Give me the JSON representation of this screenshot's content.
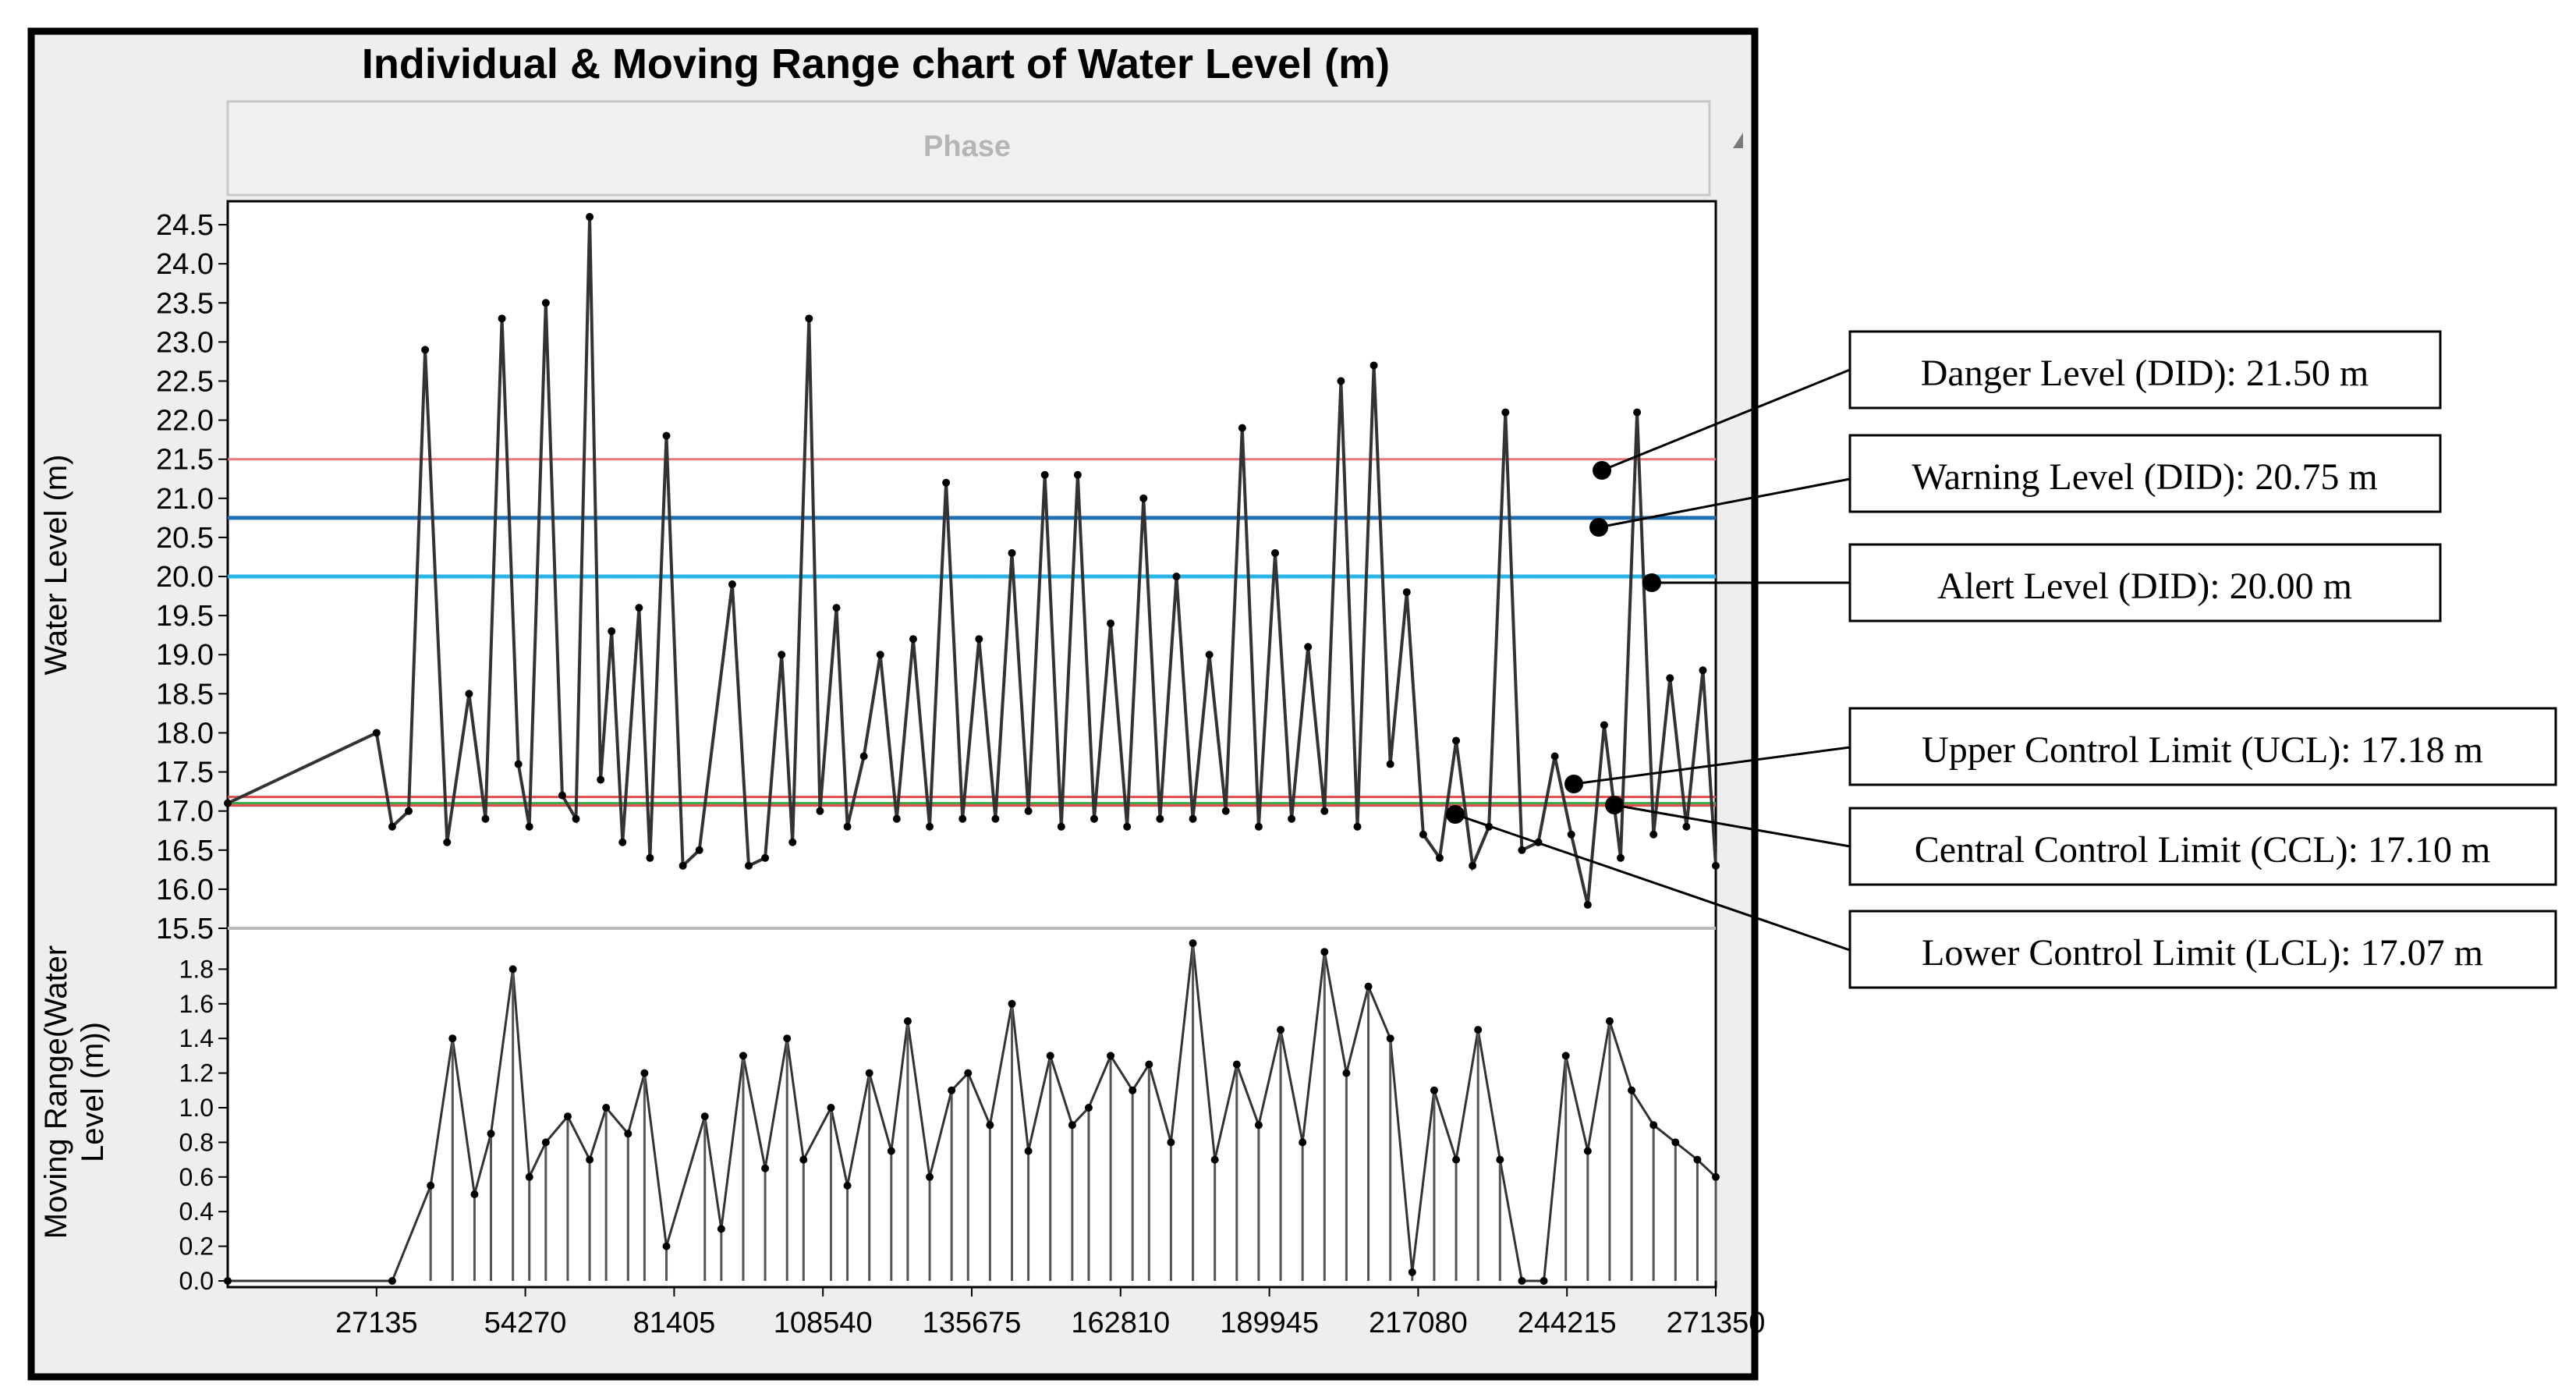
{
  "chart_data": {
    "type": "line",
    "title": "Individual & Moving Range chart of Water Level (m)",
    "phase_label": "Phase",
    "top_panel": {
      "ylabel": "Water Level (m)",
      "ylim": [
        15.5,
        24.8
      ],
      "yticks": [
        "15.5",
        "16.0",
        "16.5",
        "17.0",
        "17.5",
        "18.0",
        "18.5",
        "19.0",
        "19.5",
        "20.0",
        "20.5",
        "21.0",
        "21.5",
        "22.0",
        "22.5",
        "23.0",
        "23.5",
        "24.0",
        "24.5"
      ],
      "series": [
        {
          "name": "Water Level",
          "x": [
            0,
            27135,
            30000,
            33000,
            36000,
            40000,
            44000,
            47000,
            50000,
            53000,
            55000,
            58000,
            61000,
            63500,
            66000,
            68000,
            70000,
            72000,
            75000,
            77000,
            80000,
            83000,
            86000,
            92000,
            95000,
            98000,
            101000,
            103000,
            106000,
            108000,
            111000,
            113000,
            116000,
            119000,
            122000,
            125000,
            128000,
            131000,
            134000,
            137000,
            140000,
            143000,
            146000,
            149000,
            152000,
            155000,
            158000,
            161000,
            164000,
            167000,
            170000,
            173000,
            176000,
            179000,
            182000,
            185000,
            188000,
            191000,
            194000,
            197000,
            200000,
            203000,
            206000,
            209000,
            212000,
            215000,
            218000,
            221000,
            224000,
            227000,
            230000,
            233000,
            236000,
            239000,
            242000,
            245000,
            248000,
            251000,
            254000,
            257000,
            260000,
            263000,
            266000,
            269000,
            271350
          ],
          "values": [
            17.1,
            18.0,
            16.8,
            17.0,
            22.9,
            16.6,
            18.5,
            16.9,
            23.3,
            17.6,
            16.8,
            23.5,
            17.2,
            16.9,
            24.6,
            17.4,
            19.3,
            16.6,
            19.6,
            16.4,
            21.8,
            16.3,
            16.5,
            19.9,
            16.3,
            16.4,
            19.0,
            16.6,
            23.3,
            17.0,
            19.6,
            16.8,
            17.7,
            19.0,
            16.9,
            19.2,
            16.8,
            21.2,
            16.9,
            19.2,
            16.9,
            20.3,
            17.0,
            21.3,
            16.8,
            21.3,
            16.9,
            19.4,
            16.8,
            21.0,
            16.9,
            20.0,
            16.9,
            19.0,
            17.0,
            21.9,
            16.8,
            20.3,
            16.9,
            19.1,
            17.0,
            22.5,
            16.8,
            22.7,
            17.6,
            19.8,
            16.7,
            16.4,
            17.9,
            16.3,
            16.8,
            22.1,
            16.5,
            16.6,
            17.7,
            16.7,
            15.8,
            18.1,
            16.4,
            22.1,
            16.7,
            18.7,
            16.8,
            18.8,
            16.3
          ]
        }
      ],
      "reference_lines": [
        {
          "name": "Danger Level (DID)",
          "value": 21.5,
          "color": "#e8787c",
          "label": "Danger Level (DID): 21.50 m"
        },
        {
          "name": "Warning Level (DID)",
          "value": 20.75,
          "color": "#1f6fb4",
          "label": "Warning Level (DID): 20.75 m"
        },
        {
          "name": "Alert Level (DID)",
          "value": 20.0,
          "color": "#29b5ea",
          "label": "Alert Level (DID): 20.00 m"
        },
        {
          "name": "Upper Control Limit (UCL)",
          "value": 17.18,
          "color": "#e14b4b",
          "label": "Upper Control Limit (UCL): 17.18 m"
        },
        {
          "name": "Central Control Limit (CCL)",
          "value": 17.1,
          "color": "#3aa845",
          "label": "Central Control Limit (CCL): 17.10 m"
        },
        {
          "name": "Lower Control Limit (LCL)",
          "value": 17.07,
          "color": "#e14b4b",
          "label": "Lower Control Limit (LCL): 17.07 m"
        }
      ]
    },
    "bottom_panel": {
      "ylabel": "Moving Range(Water Level (m))",
      "ylim": [
        0,
        2.0
      ],
      "yticks": [
        "0.0",
        "0.2",
        "0.4",
        "0.6",
        "0.8",
        "1.0",
        "1.2",
        "1.4",
        "1.6",
        "1.8"
      ],
      "series": [
        {
          "name": "Moving Range",
          "x": [
            0,
            30000,
            37000,
            41000,
            45000,
            48000,
            52000,
            55000,
            58000,
            62000,
            66000,
            69000,
            73000,
            76000,
            80000,
            87000,
            90000,
            94000,
            98000,
            102000,
            105000,
            110000,
            113000,
            117000,
            121000,
            124000,
            128000,
            132000,
            135000,
            139000,
            143000,
            146000,
            150000,
            154000,
            157000,
            161000,
            165000,
            168000,
            172000,
            176000,
            180000,
            184000,
            188000,
            192000,
            196000,
            200000,
            204000,
            208000,
            212000,
            216000,
            220000,
            224000,
            228000,
            232000,
            236000,
            240000,
            244000,
            248000,
            252000,
            256000,
            260000,
            264000,
            268000,
            271350
          ],
          "values": [
            0.0,
            0.0,
            0.55,
            1.4,
            0.5,
            0.85,
            1.8,
            0.6,
            0.8,
            0.95,
            0.7,
            1.0,
            0.85,
            1.2,
            0.2,
            0.95,
            0.3,
            1.3,
            0.65,
            1.4,
            0.7,
            1.0,
            0.55,
            1.2,
            0.75,
            1.5,
            0.6,
            1.1,
            1.2,
            0.9,
            1.6,
            0.75,
            1.3,
            0.9,
            1.0,
            1.3,
            1.1,
            1.25,
            0.8,
            1.95,
            0.7,
            1.25,
            0.9,
            1.45,
            0.8,
            1.9,
            1.2,
            1.7,
            1.4,
            0.05,
            1.1,
            0.7,
            1.45,
            0.7,
            0.0,
            0.0,
            1.3,
            0.75,
            1.5,
            1.1,
            0.9,
            0.8,
            0.7,
            0.6
          ]
        }
      ]
    },
    "x_ticks": [
      "27135",
      "54270",
      "81405",
      "108540",
      "135675",
      "162810",
      "189945",
      "217080",
      "244215",
      "271350"
    ],
    "x_tick_values": [
      27135,
      54270,
      81405,
      108540,
      135675,
      162810,
      189945,
      217080,
      244215,
      271350
    ],
    "xlim": [
      0,
      271350
    ]
  }
}
